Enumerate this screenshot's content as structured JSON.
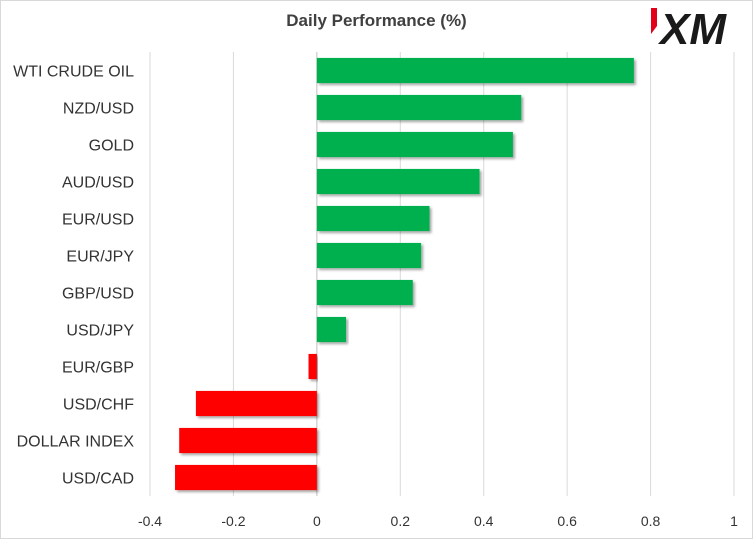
{
  "chart_data": {
    "type": "bar",
    "orientation": "horizontal",
    "title": "Daily Performance  (%)",
    "categories": [
      "WTI CRUDE OIL",
      "NZD/USD",
      "GOLD",
      "AUD/USD",
      "EUR/USD",
      "EUR/JPY",
      "GBP/USD",
      "USD/JPY",
      "EUR/GBP",
      "USD/CHF",
      "DOLLAR INDEX",
      "USD/CAD"
    ],
    "values": [
      0.76,
      0.49,
      0.47,
      0.39,
      0.27,
      0.25,
      0.23,
      0.07,
      -0.02,
      -0.29,
      -0.33,
      -0.34
    ],
    "xlim": [
      -0.4,
      1
    ],
    "xticks": [
      "-0.4",
      "-0.2",
      "0",
      "0.2",
      "0.4",
      "0.6",
      "0.8",
      "1"
    ],
    "grid": "vertical",
    "legend": "none",
    "colors": {
      "positive": "#00b050",
      "negative": "#ff0000",
      "grid": "#d9d9d9"
    }
  },
  "logo": {
    "text": "XM",
    "accent_color": "#e3001b",
    "icon": "xm-logo"
  }
}
